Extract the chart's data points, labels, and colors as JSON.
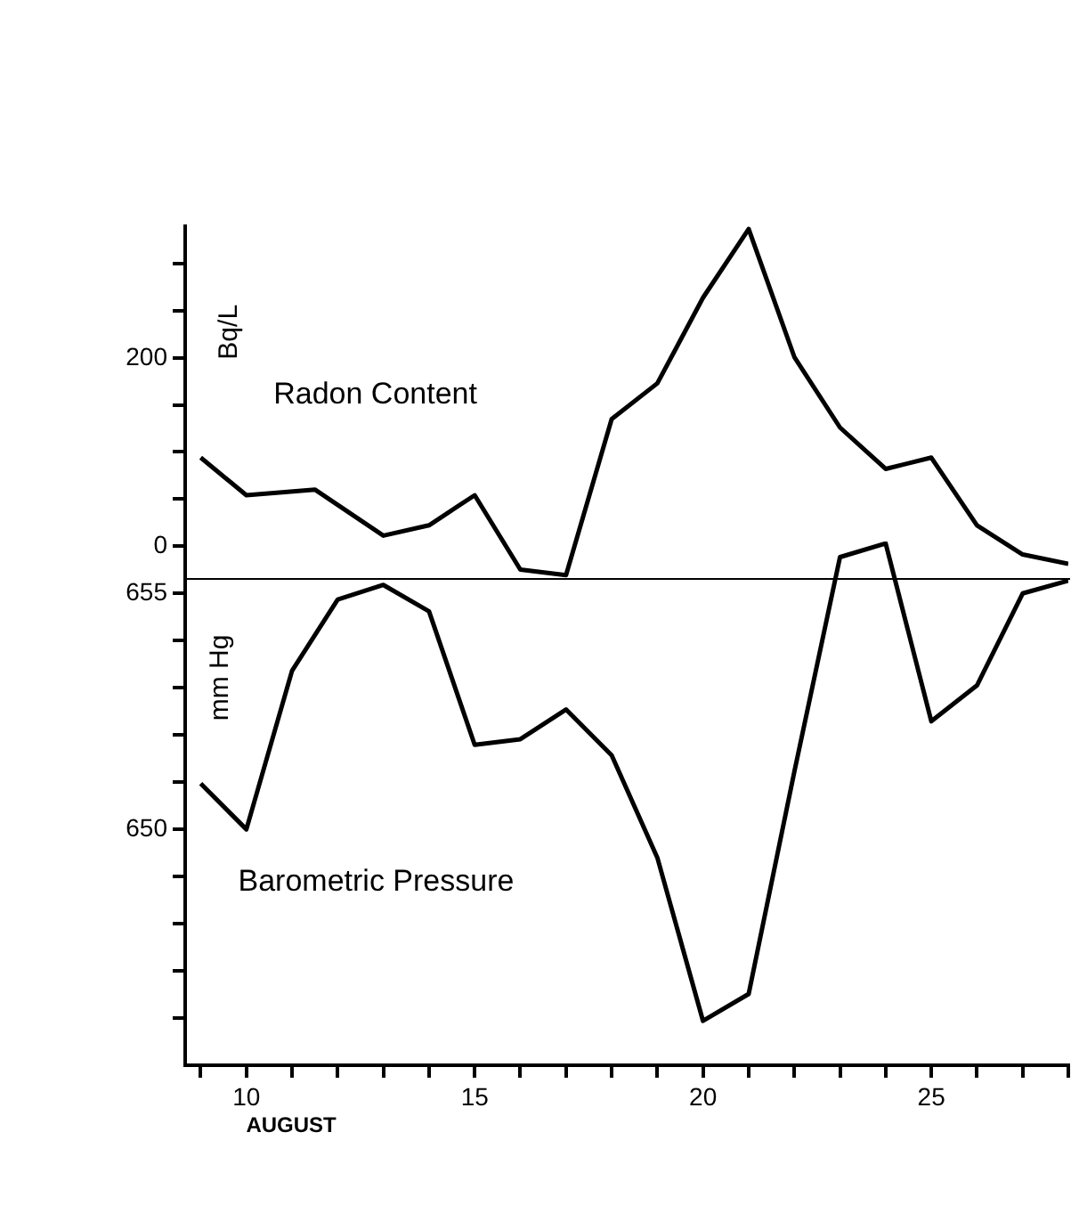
{
  "chart_data": [
    {
      "type": "line",
      "ylabel": "Bq/L",
      "marker": "none",
      "grid": false,
      "legend": false,
      "tick_labels": "y",
      "xlim": [
        8.66,
        28
      ],
      "ylim": [
        -35,
        340
      ],
      "yticks": [
        0,
        {
          "value": 50,
          "label": null
        },
        {
          "value": 100,
          "label": null
        },
        {
          "value": 150,
          "label": null
        },
        200,
        {
          "value": 250,
          "label": null
        },
        {
          "value": 300,
          "label": null
        }
      ],
      "series": [
        {
          "name": "Radon Content",
          "color": "#000000",
          "x": [
            9,
            10,
            11.5,
            13,
            14,
            15,
            16,
            17,
            18,
            19,
            20,
            21,
            22,
            23,
            24,
            25,
            26,
            27,
            28
          ],
          "values": [
            94,
            54,
            60,
            11,
            22,
            54,
            -25,
            -31,
            135,
            173,
            264,
            337,
            201,
            126,
            82,
            94,
            22,
            -9,
            -19
          ]
        }
      ]
    },
    {
      "type": "line",
      "xlabel": "AUGUST",
      "ylabel": "mm Hg",
      "marker": "none",
      "grid": false,
      "legend": false,
      "xlim": [
        8.66,
        28
      ],
      "ylim": [
        645,
        656.1
      ],
      "xticks": [
        {
          "value": 9,
          "label": null
        },
        10,
        {
          "value": 11,
          "label": null
        },
        {
          "value": 12,
          "label": null
        },
        {
          "value": 13,
          "label": null
        },
        {
          "value": 14,
          "label": null
        },
        15,
        {
          "value": 16,
          "label": null
        },
        {
          "value": 17,
          "label": null
        },
        {
          "value": 18,
          "label": null
        },
        {
          "value": 19,
          "label": null
        },
        20,
        {
          "value": 21,
          "label": null
        },
        {
          "value": 22,
          "label": null
        },
        {
          "value": 23,
          "label": null
        },
        {
          "value": 24,
          "label": null
        },
        25,
        {
          "value": 26,
          "label": null
        },
        {
          "value": 27,
          "label": null
        },
        {
          "value": 28,
          "label": null
        }
      ],
      "yticks": [
        {
          "value": 646,
          "label": null
        },
        {
          "value": 647,
          "label": null
        },
        {
          "value": 648,
          "label": null
        },
        {
          "value": 649,
          "label": null
        },
        650,
        {
          "value": 651,
          "label": null
        },
        {
          "value": 652,
          "label": null
        },
        {
          "value": 653,
          "label": null
        },
        {
          "value": 654,
          "label": null
        },
        655
      ],
      "series": [
        {
          "name": "Barometric Pressure",
          "color": "#000000",
          "x": [
            9,
            10,
            11,
            12,
            13,
            14,
            15,
            16,
            17,
            18,
            19,
            20,
            21,
            22,
            23,
            24,
            25,
            26,
            27,
            28
          ],
          "values": [
            650.97,
            650.0,
            653.36,
            654.87,
            655.18,
            654.62,
            651.79,
            651.91,
            652.54,
            651.57,
            649.4,
            645.94,
            646.51,
            651.22,
            655.77,
            656.06,
            652.29,
            653.05,
            655.0,
            655.27
          ]
        }
      ]
    }
  ]
}
